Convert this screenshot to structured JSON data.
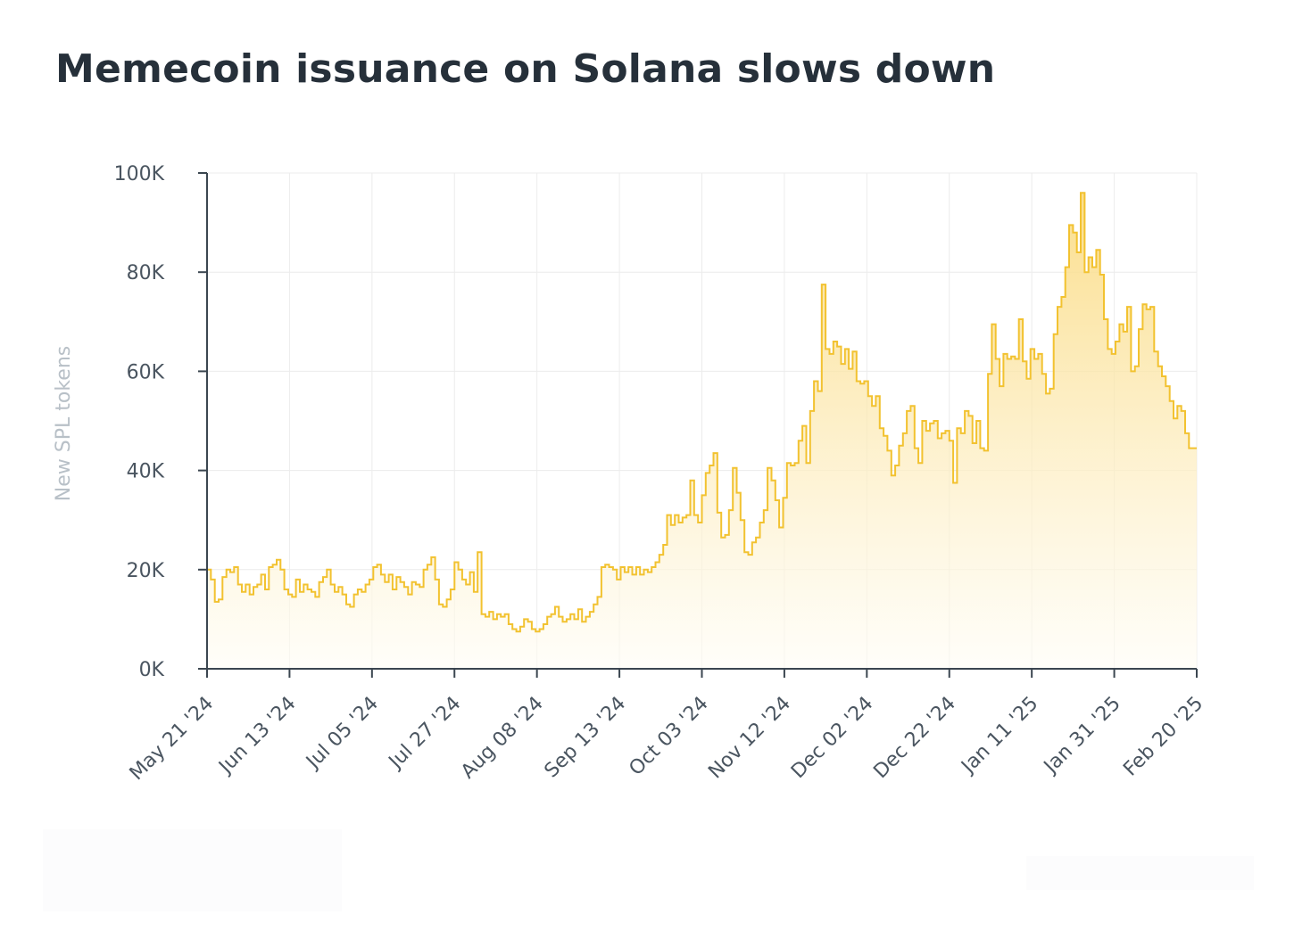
{
  "chart_data": {
    "type": "area",
    "title": "Memecoin issuance on Solana slows down",
    "ylabel": "New SPL tokens",
    "xlabel": "",
    "ylim": [
      0,
      100000
    ],
    "yticks": [
      {
        "value": 0,
        "label": "0K"
      },
      {
        "value": 20000,
        "label": "20K"
      },
      {
        "value": 40000,
        "label": "40K"
      },
      {
        "value": 60000,
        "label": "60K"
      },
      {
        "value": 80000,
        "label": "80K"
      },
      {
        "value": 100000,
        "label": "100K"
      }
    ],
    "xticks": [
      "May 21 '24",
      "Jun 13 '24",
      "Jul 05 '24",
      "Jul 27 '24",
      "Aug 08 '24",
      "Sep 13 '24",
      "Oct 03 '24",
      "Nov 12 '24",
      "Dec 02 '24",
      "Dec 22 '24",
      "Jan 11 '25",
      "Jan 31 '25",
      "Feb 20 '25"
    ],
    "grid": true,
    "step": true,
    "color": "#f2c230",
    "fill_top": "#fad878",
    "fill_bottom": "#fffdf5",
    "values": [
      20000,
      18000,
      13500,
      14000,
      18500,
      20000,
      19500,
      20500,
      17000,
      15500,
      17000,
      15000,
      16500,
      17000,
      19000,
      16000,
      20500,
      21000,
      22000,
      20000,
      16000,
      15000,
      14500,
      18000,
      15500,
      17000,
      16000,
      15500,
      14500,
      17500,
      18500,
      20000,
      17000,
      15500,
      16500,
      15000,
      13000,
      12500,
      15000,
      16000,
      15500,
      17000,
      18000,
      20500,
      21000,
      19000,
      17500,
      19000,
      16000,
      18500,
      17500,
      16500,
      15000,
      17500,
      17000,
      16500,
      20000,
      21000,
      22500,
      18000,
      13000,
      12500,
      14000,
      16000,
      21500,
      20000,
      18000,
      17000,
      19500,
      15500,
      23500,
      11000,
      10500,
      11500,
      10000,
      11000,
      10500,
      11000,
      9000,
      8000,
      7500,
      8500,
      10000,
      9500,
      8000,
      7500,
      8000,
      9000,
      10500,
      11000,
      12500,
      10500,
      9500,
      10000,
      11000,
      10000,
      12000,
      9500,
      10500,
      11500,
      13000,
      14500,
      20500,
      21000,
      20500,
      20000,
      18000,
      20500,
      19500,
      20500,
      19000,
      20500,
      19000,
      20000,
      19500,
      20500,
      21500,
      23000,
      25000,
      31000,
      29000,
      31000,
      29500,
      30500,
      31000,
      38000,
      31000,
      29500,
      35000,
      39500,
      41000,
      43500,
      31500,
      26500,
      27000,
      32000,
      40500,
      35500,
      30000,
      23500,
      23000,
      25500,
      26500,
      29500,
      32000,
      40500,
      38000,
      34000,
      28500,
      34500,
      41500,
      41000,
      41500,
      46000,
      49000,
      41500,
      52000,
      58000,
      56000,
      77500,
      64500,
      63500,
      66000,
      65000,
      61500,
      64500,
      60500,
      64000,
      58000,
      57500,
      58000,
      55000,
      53000,
      55000,
      48500,
      47000,
      44000,
      39000,
      41000,
      45000,
      47500,
      52000,
      53000,
      44500,
      41500,
      50000,
      48000,
      49500,
      50000,
      46500,
      47500,
      48000,
      46000,
      37500,
      48500,
      47500,
      52000,
      51000,
      45500,
      50000,
      44500,
      44000,
      59500,
      69500,
      62500,
      57000,
      63500,
      62500,
      63000,
      62500,
      70500,
      62000,
      58500,
      64500,
      62500,
      63500,
      59500,
      55500,
      56500,
      67500,
      73000,
      75000,
      81000,
      89500,
      88000,
      84000,
      96000,
      80000,
      83000,
      81000,
      84500,
      79500,
      70500,
      64500,
      63500,
      66000,
      69500,
      68000,
      73000,
      60000,
      61000,
      68500,
      73500,
      72500,
      73000,
      64000,
      61000,
      59000,
      57000,
      54000,
      50500,
      53000,
      52000,
      47500,
      44500,
      44500
    ]
  }
}
